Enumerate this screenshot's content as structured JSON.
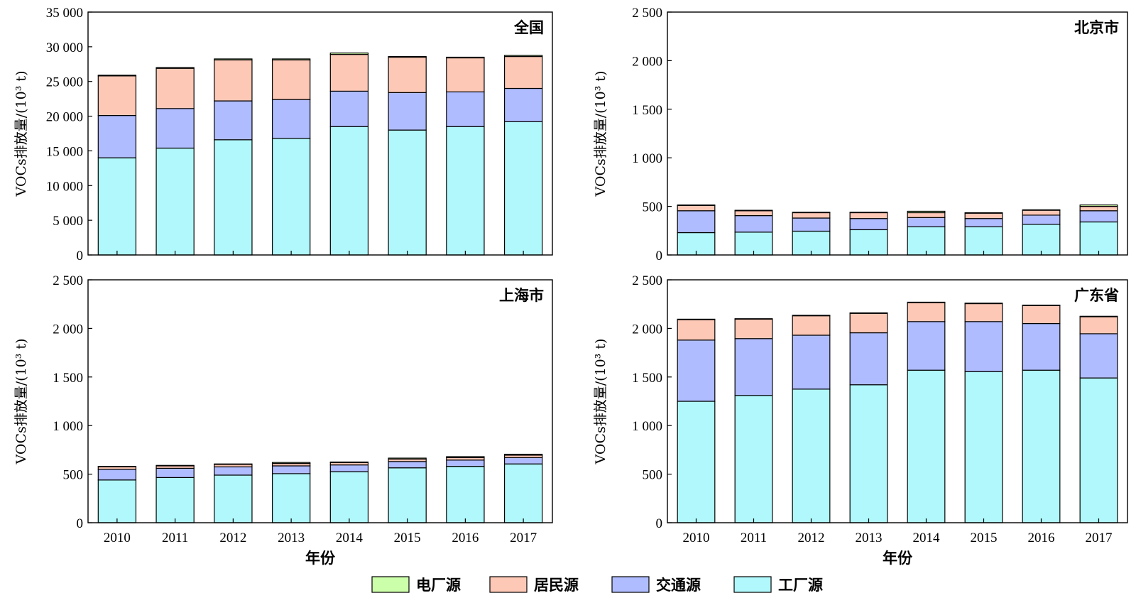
{
  "legend": [
    {
      "name": "电厂源",
      "color": "#ccffaa"
    },
    {
      "name": "居民源",
      "color": "#fdc8b6"
    },
    {
      "name": "交通源",
      "color": "#afbcff"
    },
    {
      "name": "工厂源",
      "color": "#b0f8fb"
    }
  ],
  "chart_data": [
    {
      "type": "bar",
      "stacked": true,
      "title": "全国",
      "ylabel": "VOCs排放量/(10³ t)",
      "xlabel": "",
      "ylim": [
        0,
        35000
      ],
      "yticks": [
        0,
        5000,
        10000,
        15000,
        20000,
        25000,
        30000,
        35000
      ],
      "ytick_labels": [
        "0",
        "5 000",
        "10 000",
        "15 000",
        "20 000",
        "25 000",
        "30 000",
        "35 000"
      ],
      "categories": [
        "2010",
        "2011",
        "2012",
        "2013",
        "2014",
        "2015",
        "2016",
        "2017"
      ],
      "series": [
        {
          "name": "工厂源",
          "values": [
            14000,
            15400,
            16600,
            16800,
            18500,
            18000,
            18500,
            19200
          ]
        },
        {
          "name": "交通源",
          "values": [
            6100,
            5700,
            5600,
            5600,
            5100,
            5400,
            5000,
            4800
          ]
        },
        {
          "name": "居民源",
          "values": [
            5700,
            5800,
            5900,
            5700,
            5300,
            5100,
            4900,
            4600
          ]
        },
        {
          "name": "电厂源",
          "values": [
            100,
            100,
            150,
            150,
            200,
            100,
            100,
            150
          ]
        }
      ]
    },
    {
      "type": "bar",
      "stacked": true,
      "title": "北京市",
      "ylabel": "VOCs排放量/(10³ t)",
      "xlabel": "",
      "ylim": [
        0,
        2500
      ],
      "yticks": [
        0,
        500,
        1000,
        1500,
        2000,
        2500
      ],
      "ytick_labels": [
        "0",
        "500",
        "1 000",
        "1 500",
        "2 000",
        "2 500"
      ],
      "categories": [
        "2010",
        "2011",
        "2012",
        "2013",
        "2014",
        "2015",
        "2016",
        "2017"
      ],
      "series": [
        {
          "name": "工厂源",
          "values": [
            230,
            235,
            245,
            260,
            290,
            290,
            315,
            340
          ]
        },
        {
          "name": "交通源",
          "values": [
            225,
            170,
            135,
            115,
            95,
            85,
            95,
            115
          ]
        },
        {
          "name": "居民源",
          "values": [
            55,
            50,
            55,
            60,
            50,
            55,
            50,
            45
          ]
        },
        {
          "name": "电厂源",
          "values": [
            5,
            5,
            5,
            5,
            15,
            5,
            5,
            15
          ]
        }
      ]
    },
    {
      "type": "bar",
      "stacked": true,
      "title": "上海市",
      "ylabel": "VOCs排放量/(10³ t)",
      "xlabel": "年份",
      "ylim": [
        0,
        2500
      ],
      "yticks": [
        0,
        500,
        1000,
        1500,
        2000,
        2500
      ],
      "ytick_labels": [
        "0",
        "500",
        "1 000",
        "1 500",
        "2 000",
        "2 500"
      ],
      "categories": [
        "2010",
        "2011",
        "2012",
        "2013",
        "2014",
        "2015",
        "2016",
        "2017"
      ],
      "series": [
        {
          "name": "工厂源",
          "values": [
            440,
            465,
            490,
            505,
            525,
            565,
            580,
            605
          ]
        },
        {
          "name": "交通源",
          "values": [
            110,
            95,
            85,
            80,
            70,
            65,
            65,
            65
          ]
        },
        {
          "name": "居民源",
          "values": [
            25,
            25,
            25,
            25,
            25,
            25,
            25,
            25
          ]
        },
        {
          "name": "电厂源",
          "values": [
            5,
            5,
            5,
            10,
            5,
            10,
            10,
            10
          ]
        }
      ]
    },
    {
      "type": "bar",
      "stacked": true,
      "title": "广东省",
      "ylabel": "VOCs排放量/(10³ t)",
      "xlabel": "年份",
      "ylim": [
        0,
        2500
      ],
      "yticks": [
        0,
        500,
        1000,
        1500,
        2000,
        2500
      ],
      "ytick_labels": [
        "0",
        "500",
        "1 000",
        "1 500",
        "2 000",
        "2 500"
      ],
      "categories": [
        "2010",
        "2011",
        "2012",
        "2013",
        "2014",
        "2015",
        "2016",
        "2017"
      ],
      "series": [
        {
          "name": "工厂源",
          "values": [
            1250,
            1310,
            1375,
            1420,
            1570,
            1555,
            1570,
            1490
          ]
        },
        {
          "name": "交通源",
          "values": [
            630,
            585,
            555,
            535,
            500,
            515,
            480,
            455
          ]
        },
        {
          "name": "居民源",
          "values": [
            210,
            200,
            200,
            200,
            195,
            185,
            185,
            175
          ]
        },
        {
          "name": "电厂源",
          "values": [
            5,
            5,
            5,
            5,
            5,
            5,
            5,
            5
          ]
        }
      ]
    }
  ]
}
